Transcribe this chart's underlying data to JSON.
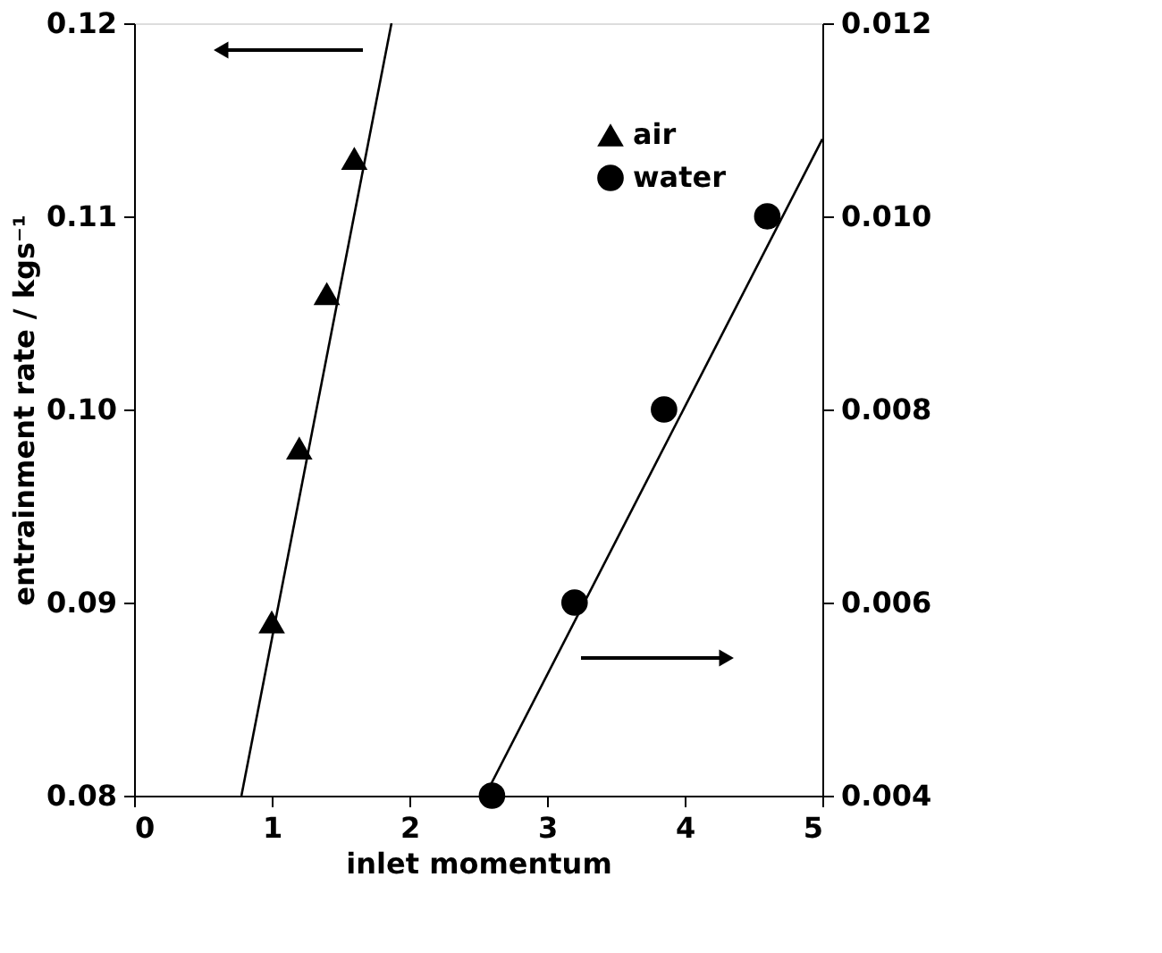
{
  "chart_data": {
    "type": "scatter",
    "xlabel": "inlet momentum",
    "ylabel": "entrainment rate  /  kgs⁻¹",
    "xlim": [
      0,
      5
    ],
    "xticks": [
      0,
      1,
      2,
      3,
      4,
      5
    ],
    "ylim": [
      0.08,
      0.12
    ],
    "yticks": [
      0.08,
      0.09,
      {
        "value": 0.1,
        "label": "0.10"
      },
      0.11,
      0.12
    ],
    "y2lim": [
      0.004,
      0.012
    ],
    "y2ticks": [
      0.004,
      0.006,
      0.008,
      {
        "value": 0.01,
        "label": "0.010"
      },
      0.012
    ],
    "legend": "top right",
    "grid": false,
    "series": [
      {
        "name": "air",
        "marker": "triangle",
        "color": "#000000",
        "x": [
          1.0,
          1.2,
          1.4,
          1.6
        ],
        "values": [
          0.089,
          0.098,
          0.106,
          0.113
        ]
      },
      {
        "name": "water",
        "marker": "circle",
        "color": "#000000",
        "axis": "y2",
        "x": [
          2.6,
          3.2,
          3.85,
          4.6
        ],
        "values": [
          0.004,
          0.006,
          0.008,
          0.01
        ]
      },
      {
        "type": "line",
        "color": "#000000",
        "x": [
          0.78,
          1.87
        ],
        "values": [
          0.08,
          0.12
        ]
      },
      {
        "type": "line",
        "color": "#000000",
        "axis": "y2",
        "x": [
          2.55,
          5.0
        ],
        "values": [
          0.004,
          0.0108
        ]
      }
    ]
  }
}
